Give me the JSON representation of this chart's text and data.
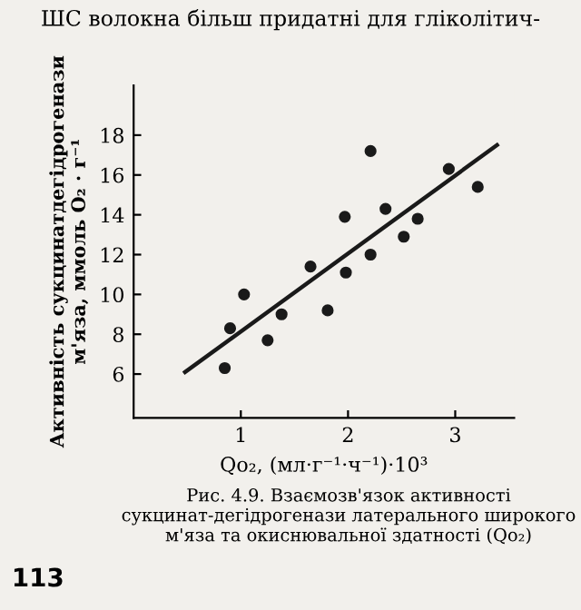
{
  "chart_data": {
    "type": "scatter",
    "xlabel": "Qo₂, (мл·г⁻¹·ч⁻¹)·10³",
    "ylabel": "Активність сукцинатдегідрогенази\nм'яза, ммоль O₂ · г⁻¹",
    "series": [
      {
        "color": "#1a1a1a",
        "marker": "circle",
        "x": [
          0.85,
          0.9,
          1.03,
          1.25,
          1.38,
          1.65,
          1.81,
          1.97,
          1.98,
          2.21,
          2.21,
          2.35,
          2.52,
          2.65,
          2.94,
          3.21
        ],
        "values": [
          6.3,
          8.3,
          10.0,
          7.7,
          9.0,
          11.4,
          9.2,
          13.9,
          11.1,
          17.2,
          12.0,
          14.3,
          12.9,
          13.8,
          16.3,
          15.4
        ]
      },
      {
        "type": "line",
        "color": "#1a1a1a",
        "line_style": "solid",
        "x": [
          0.48,
          3.39
        ],
        "values": [
          6.1,
          17.5
        ]
      }
    ],
    "xlim": [
      0,
      3.55
    ],
    "ylim": [
      3.8,
      20.5
    ],
    "xticks": [
      1,
      2,
      3
    ],
    "yticks": [
      6,
      8,
      10,
      12,
      14,
      16,
      18
    ],
    "grid": false,
    "legend": false,
    "annotations": [
      "ШС волокна більш придатні для гліколітич-",
      "Рис. 4.9. Взаємозв'язок активності сукцинат-дегідрогенази латерального широкого м'яза та окиснювальної здатності (Qo₂)",
      "113"
    ]
  }
}
